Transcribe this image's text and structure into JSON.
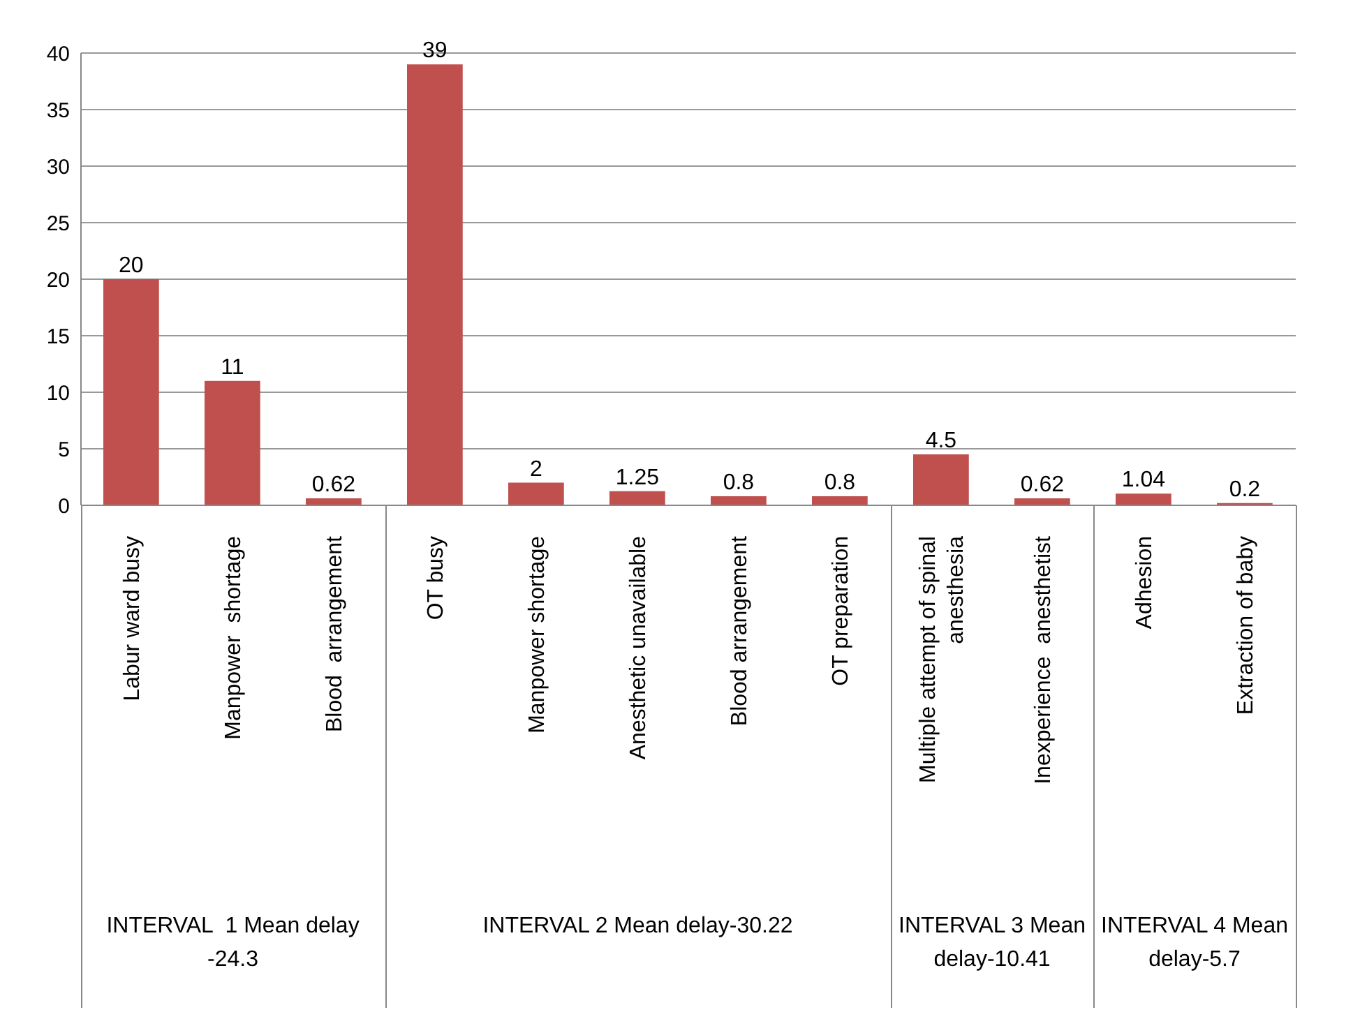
{
  "chart_data": {
    "type": "bar",
    "categories": [
      "Labur ward busy",
      "Manpower  shortage",
      "Blood  arrangement",
      "OT busy",
      "Manpower shortage",
      "Anesthetic unavailable",
      "Blood arrangement",
      "OT preparation",
      "Multiple attempt of spinal anesthesia",
      "Inexperience  anesthetist",
      "Adhesion",
      "Extraction of baby"
    ],
    "values": [
      20,
      11,
      0.62,
      39,
      2,
      1.25,
      0.8,
      0.8,
      4.5,
      0.62,
      1.04,
      0.2
    ],
    "color": "#c0504d",
    "data_labels": true,
    "grid": "y",
    "ylim": [
      0,
      40
    ],
    "yticks": [
      0,
      5,
      10,
      15,
      20,
      25,
      30,
      35,
      40
    ],
    "annotations": [
      "INTERVAL  1 Mean delay -24.3",
      "INTERVAL 2 Mean delay-30.22",
      "INTERVAL 3 Mean delay-10.41",
      "INTERVAL 4 Mean delay-5.7"
    ]
  }
}
